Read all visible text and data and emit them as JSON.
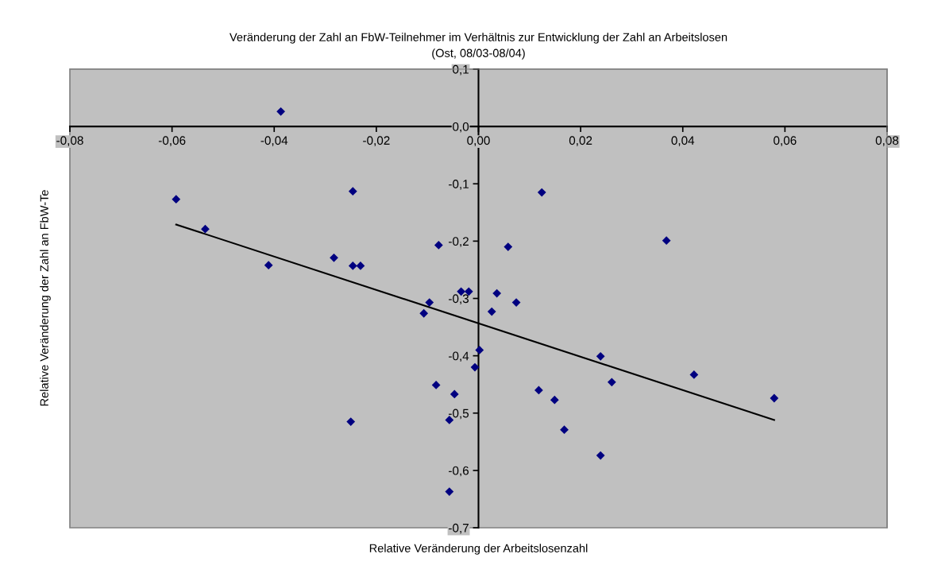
{
  "chart_data": {
    "type": "scatter",
    "title": "Veränderung der Zahl an FbW-Teilnehmer im Verhältnis zur Entwicklung der Zahl an Arbeitslosen",
    "subtitle": "(Ost, 08/03-08/04)",
    "xlabel": "Relative Veränderung der Arbeitslosenzahl",
    "ylabel": "Relative Veränderung der Zahl an FbW-Te",
    "xlim": [
      -0.08,
      0.08
    ],
    "ylim": [
      -0.7,
      0.1
    ],
    "xticks": [
      {
        "value": -0.08,
        "label": "-0,08"
      },
      {
        "value": -0.06,
        "label": "-0,06"
      },
      {
        "value": -0.04,
        "label": "-0,04"
      },
      {
        "value": -0.02,
        "label": "-0,02"
      },
      {
        "value": 0,
        "label": "0,00"
      },
      {
        "value": 0.02,
        "label": "0,02"
      },
      {
        "value": 0.04,
        "label": "0,04"
      },
      {
        "value": 0.06,
        "label": "0,06"
      },
      {
        "value": 0.08,
        "label": "0,08"
      }
    ],
    "yticks": [
      {
        "value": -0.7,
        "label": "-0,7"
      },
      {
        "value": -0.6,
        "label": "-0,6"
      },
      {
        "value": -0.5,
        "label": "-0,5"
      },
      {
        "value": -0.4,
        "label": "-0,4"
      },
      {
        "value": -0.3,
        "label": "-0,3"
      },
      {
        "value": -0.2,
        "label": "-0,2"
      },
      {
        "value": -0.1,
        "label": "-0,1"
      },
      {
        "value": 0,
        "label": "0,0"
      },
      {
        "value": 0.1,
        "label": "0,1"
      }
    ],
    "grid": false,
    "legend": false,
    "series": [
      {
        "type": "scatter",
        "color": "#000080",
        "marker": "diamond",
        "x": [
          -0.0592,
          -0.0535,
          -0.0387,
          -0.0411,
          -0.0283,
          -0.0246,
          -0.0246,
          -0.0231,
          -0.025,
          -0.0078,
          -0.0107,
          -0.0096,
          -0.0083,
          -0.0047,
          -0.0057,
          -0.0057,
          -0.0007,
          0.0002,
          0.0026,
          -0.0034,
          -0.0019,
          0.0036,
          0.0074,
          0.0058,
          0.0124,
          0.0368,
          0.0118,
          0.0149,
          0.0168,
          0.0239,
          0.0239,
          0.0261,
          0.0422,
          0.0579
        ],
        "values": [
          -0.127,
          -0.179,
          0.026,
          -0.242,
          -0.229,
          -0.113,
          -0.243,
          -0.243,
          -0.515,
          -0.207,
          -0.326,
          -0.307,
          -0.451,
          -0.467,
          -0.512,
          -0.637,
          -0.42,
          -0.39,
          -0.323,
          -0.288,
          -0.288,
          -0.291,
          -0.307,
          -0.21,
          -0.115,
          -0.199,
          -0.46,
          -0.477,
          -0.529,
          -0.401,
          -0.574,
          -0.446,
          -0.433,
          -0.474
        ]
      },
      {
        "type": "line",
        "color": "#000000",
        "marker": "none",
        "line_style": "solid",
        "x": [
          -0.0592,
          0.0579
        ],
        "values": [
          -0.171,
          -0.512
        ]
      }
    ]
  }
}
